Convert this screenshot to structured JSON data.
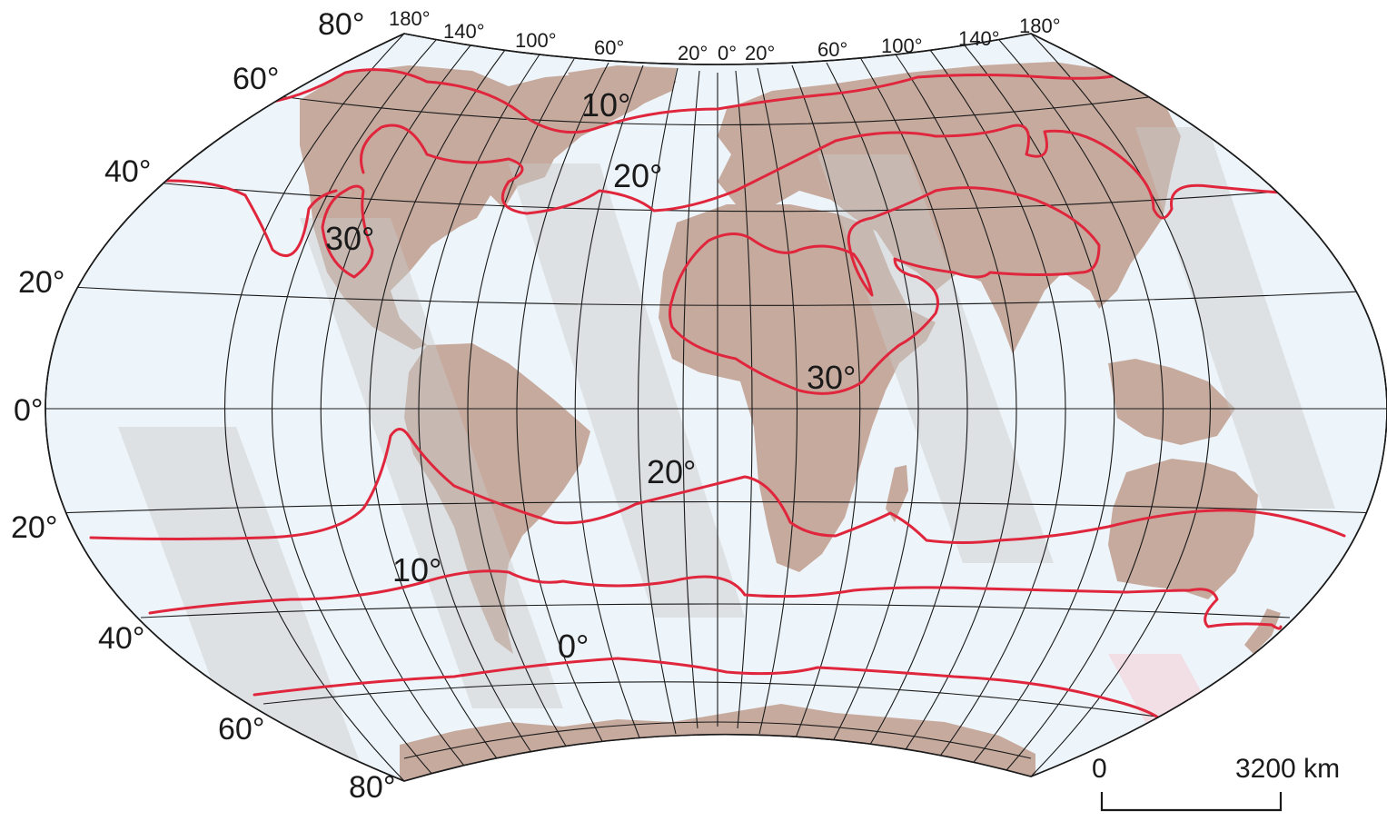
{
  "colors": {
    "ocean": "#eef5fa",
    "land": "#c7aa9e",
    "isotherm": "#e0263c",
    "graticule": "#1a1a1a",
    "watermark_gray": "#c9c9c9",
    "watermark_pink": "#f5c6cc"
  },
  "latitude_labels": {
    "n80": "80°",
    "n60": "60°",
    "n40": "40°",
    "n20": "20°",
    "eq": "0°",
    "s20": "20°",
    "s40": "40°",
    "s60": "60°",
    "s80": "80°"
  },
  "longitude_labels": [
    "180°",
    "140°",
    "100°",
    "60°",
    "20°",
    "0°",
    "20°",
    "60°",
    "100°",
    "140°",
    "180°"
  ],
  "isotherm_labels": {
    "north_10": "10°",
    "north_20": "20°",
    "north_30_america": "30°",
    "north_30_africa": "30°",
    "south_20": "20°",
    "south_10": "10°",
    "south_0": "0°"
  },
  "scale_bar": {
    "start": "0",
    "end": "3200 km"
  }
}
